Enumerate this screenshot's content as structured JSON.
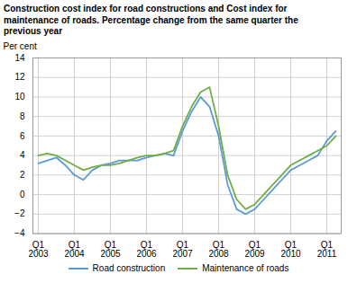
{
  "chart_data": {
    "type": "line",
    "title": "Construction cost index for road constructions and Cost index for\nmaintenance of roads. Percentage change from the same quarter the\nprevious year",
    "ylabel": "Per cent",
    "categories": [
      "Q1\n2003",
      null,
      null,
      null,
      "Q1\n2004",
      null,
      null,
      null,
      "Q1\n2005",
      null,
      null,
      null,
      "Q1\n2006",
      null,
      null,
      null,
      "Q1\n2007",
      null,
      null,
      null,
      "Q1\n2008",
      null,
      null,
      null,
      "Q1\n2009",
      null,
      null,
      null,
      "Q1\n2010",
      null,
      null,
      null,
      "Q1\n2011",
      null
    ],
    "series": [
      {
        "name": "Road construction",
        "color": "#5b9bd5",
        "values": [
          3.2,
          3.5,
          3.8,
          3.0,
          2.0,
          1.5,
          2.5,
          3.0,
          3.2,
          3.5,
          3.5,
          3.5,
          3.8,
          4.0,
          4.2,
          4.0,
          6.5,
          8.5,
          10.0,
          9.0,
          6.0,
          1.0,
          -1.5,
          -2.0,
          -1.5,
          -0.5,
          0.5,
          1.5,
          2.5,
          3.0,
          3.5,
          4.0,
          5.5,
          6.5
        ]
      },
      {
        "name": "Maintenance of roads",
        "color": "#70ad47",
        "values": [
          4.0,
          4.2,
          4.0,
          3.5,
          3.0,
          2.5,
          2.8,
          3.0,
          3.0,
          3.2,
          3.5,
          3.8,
          4.0,
          4.0,
          4.2,
          4.5,
          7.0,
          9.0,
          10.5,
          11.0,
          7.0,
          2.0,
          -0.5,
          -1.5,
          -1.0,
          0.0,
          1.0,
          2.0,
          3.0,
          3.5,
          4.0,
          4.5,
          5.0,
          6.0
        ]
      }
    ],
    "ylim": [
      -4,
      14
    ],
    "yticks": [
      -4,
      -2,
      0,
      2,
      4,
      6,
      8,
      10,
      12,
      14
    ],
    "grid": true,
    "legend": "bottom"
  }
}
